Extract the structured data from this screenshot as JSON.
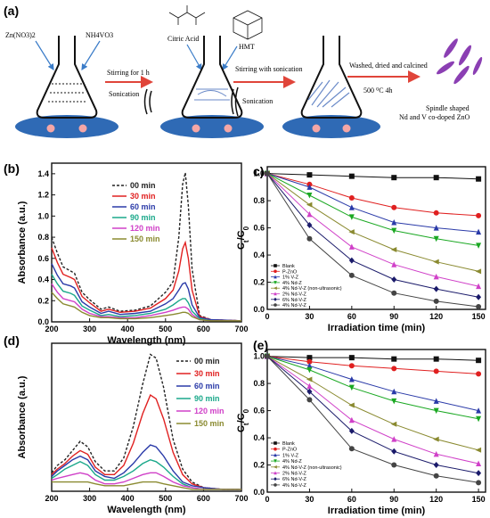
{
  "panel_labels": {
    "a": "(a)",
    "b": "(b)",
    "c": "c)",
    "d": "(d)",
    "e": "(e)"
  },
  "scheme": {
    "reagent1": "Zn(NO3)2",
    "reagent2": "NH4VO3",
    "citric": "Citric Acid",
    "hmt": "HMT",
    "step1": "Stirring for 1 h",
    "step2": "Stirring with sonication",
    "step3": "Washed, dried and calcined",
    "temp": "500 ⁰C 4h",
    "sonication1": "Sonication",
    "sonication2": "Sonication",
    "product1": "Spindle shaped",
    "product2": "Nd and V co-doped ZnO",
    "colors": {
      "arrow": "#e0453a",
      "pad": "#2f6ab5",
      "dot": "#f4a6a6",
      "spindle": "#8b3fb3"
    }
  },
  "chart_data": [
    {
      "id": "b",
      "type": "line",
      "xlabel": "Wavelength (nm)",
      "ylabel": "Absorbance (a.u.)",
      "xlim": [
        200,
        700
      ],
      "ylim": [
        0.0,
        1.5
      ],
      "xticks": [
        200,
        300,
        400,
        500,
        600,
        700
      ],
      "yticks": [
        0.0,
        0.2,
        0.4,
        0.6,
        0.8,
        1.0,
        1.2,
        1.4
      ],
      "ytick_labels": [
        "0.0",
        "0.2",
        "0.4",
        "0.6",
        "0.8",
        "1.0",
        "1.2",
        "1.4"
      ],
      "legend": "top-left-inside",
      "series": [
        {
          "name": "00 min",
          "color": "#222222",
          "dash": "3,2",
          "x": [
            200,
            215,
            230,
            250,
            260,
            280,
            300,
            330,
            350,
            380,
            420,
            460,
            500,
            520,
            535,
            545,
            552,
            560,
            570,
            590,
            620,
            700
          ],
          "y": [
            0.8,
            0.65,
            0.52,
            0.48,
            0.46,
            0.28,
            0.21,
            0.12,
            0.14,
            0.1,
            0.11,
            0.15,
            0.28,
            0.38,
            0.8,
            1.3,
            1.41,
            1.1,
            0.5,
            0.06,
            0.02,
            0.01
          ]
        },
        {
          "name": "30 min",
          "color": "#e02020",
          "x": [
            200,
            215,
            230,
            250,
            260,
            280,
            300,
            330,
            350,
            380,
            420,
            460,
            500,
            520,
            535,
            545,
            552,
            560,
            570,
            590,
            620,
            700
          ],
          "y": [
            0.7,
            0.56,
            0.45,
            0.42,
            0.4,
            0.24,
            0.18,
            0.1,
            0.12,
            0.09,
            0.1,
            0.13,
            0.22,
            0.3,
            0.48,
            0.69,
            0.75,
            0.6,
            0.3,
            0.05,
            0.02,
            0.01
          ]
        },
        {
          "name": "60 min",
          "color": "#2a3aa8",
          "x": [
            200,
            215,
            230,
            250,
            260,
            280,
            300,
            330,
            350,
            380,
            420,
            460,
            500,
            520,
            535,
            545,
            552,
            560,
            570,
            590,
            620,
            700
          ],
          "y": [
            0.55,
            0.44,
            0.36,
            0.34,
            0.32,
            0.19,
            0.14,
            0.08,
            0.1,
            0.07,
            0.08,
            0.1,
            0.17,
            0.22,
            0.3,
            0.36,
            0.37,
            0.31,
            0.16,
            0.04,
            0.02,
            0.01
          ]
        },
        {
          "name": "90 min",
          "color": "#1aa88a",
          "x": [
            200,
            215,
            230,
            250,
            260,
            280,
            300,
            330,
            350,
            380,
            420,
            460,
            500,
            520,
            535,
            545,
            552,
            560,
            570,
            590,
            620,
            700
          ],
          "y": [
            0.45,
            0.36,
            0.29,
            0.27,
            0.25,
            0.15,
            0.11,
            0.06,
            0.07,
            0.05,
            0.06,
            0.08,
            0.12,
            0.16,
            0.2,
            0.22,
            0.22,
            0.18,
            0.1,
            0.03,
            0.01,
            0.01
          ]
        },
        {
          "name": "120 min",
          "color": "#d040c8",
          "x": [
            200,
            215,
            230,
            250,
            260,
            280,
            300,
            330,
            350,
            380,
            420,
            460,
            500,
            520,
            535,
            545,
            552,
            560,
            570,
            590,
            620,
            700
          ],
          "y": [
            0.36,
            0.28,
            0.22,
            0.2,
            0.19,
            0.12,
            0.08,
            0.05,
            0.05,
            0.04,
            0.04,
            0.06,
            0.09,
            0.11,
            0.13,
            0.14,
            0.14,
            0.12,
            0.07,
            0.02,
            0.01,
            0.01
          ]
        },
        {
          "name": "150 min",
          "color": "#8a8a30",
          "x": [
            200,
            215,
            230,
            250,
            260,
            280,
            300,
            330,
            350,
            380,
            420,
            460,
            500,
            520,
            535,
            545,
            552,
            560,
            570,
            590,
            620,
            700
          ],
          "y": [
            0.28,
            0.22,
            0.17,
            0.15,
            0.14,
            0.09,
            0.06,
            0.04,
            0.04,
            0.03,
            0.03,
            0.04,
            0.06,
            0.07,
            0.08,
            0.09,
            0.09,
            0.08,
            0.05,
            0.02,
            0.01,
            0.01
          ]
        }
      ]
    },
    {
      "id": "c",
      "type": "line",
      "xlabel": "Irradiation time (min)",
      "ylabel": "Ct/C0",
      "xlim": [
        0,
        155
      ],
      "ylim": [
        0.0,
        1.05
      ],
      "xticks": [
        0,
        30,
        60,
        90,
        120,
        150
      ],
      "yticks": [
        0.0,
        0.2,
        0.4,
        0.6,
        0.8,
        1.0
      ],
      "ytick_labels": [
        "0.0",
        "0.2",
        "0.4",
        "0.6",
        "0.8",
        "1.0"
      ],
      "legend": "bottom-left-inside",
      "x": [
        0,
        30,
        60,
        90,
        120,
        150
      ],
      "series": [
        {
          "name": "Blank",
          "color": "#111111",
          "marker": "square",
          "values": [
            1.0,
            0.99,
            0.98,
            0.97,
            0.97,
            0.96
          ]
        },
        {
          "name": "P-ZnO",
          "color": "#e02020",
          "marker": "circle",
          "values": [
            1.0,
            0.92,
            0.82,
            0.75,
            0.71,
            0.69
          ]
        },
        {
          "name": "1% V-Z",
          "color": "#2a3aa8",
          "marker": "triangle",
          "values": [
            1.0,
            0.9,
            0.75,
            0.64,
            0.6,
            0.57
          ]
        },
        {
          "name": "4% Nd-Z",
          "color": "#1aa822",
          "marker": "tri-down",
          "values": [
            1.0,
            0.84,
            0.68,
            0.58,
            0.52,
            0.47
          ]
        },
        {
          "name": "4% Nd-V-Z (non-ultrasonic)",
          "color": "#8a8a30",
          "marker": "triangle-left",
          "values": [
            1.0,
            0.77,
            0.57,
            0.44,
            0.35,
            0.28
          ]
        },
        {
          "name": "2% Nd-V-Z",
          "color": "#d040c8",
          "marker": "triangle",
          "values": [
            1.0,
            0.7,
            0.46,
            0.33,
            0.24,
            0.17
          ]
        },
        {
          "name": "6% Nd-V-Z",
          "color": "#1a1a6a",
          "marker": "diamond",
          "values": [
            1.0,
            0.62,
            0.36,
            0.22,
            0.15,
            0.09
          ]
        },
        {
          "name": "4% Nd-V-Z",
          "color": "#444444",
          "marker": "circle",
          "values": [
            1.0,
            0.52,
            0.25,
            0.12,
            0.06,
            0.02
          ]
        }
      ]
    },
    {
      "id": "d",
      "type": "line",
      "xlabel": "Wavelength (nm)",
      "ylabel": "Absorbance (a.u.)",
      "xlim": [
        200,
        700
      ],
      "ylim": [
        0.0,
        0.8
      ],
      "xticks": [
        200,
        300,
        400,
        500,
        600,
        700
      ],
      "yticks": [],
      "legend": "top-right-inside",
      "series": [
        {
          "name": "00 min",
          "color": "#222222",
          "dash": "3,2",
          "x": [
            200,
            215,
            235,
            255,
            275,
            295,
            315,
            340,
            365,
            390,
            415,
            440,
            460,
            475,
            495,
            520,
            545,
            570,
            600,
            650,
            700
          ],
          "y": [
            0.1,
            0.14,
            0.17,
            0.22,
            0.27,
            0.24,
            0.16,
            0.11,
            0.11,
            0.18,
            0.35,
            0.58,
            0.74,
            0.72,
            0.56,
            0.28,
            0.12,
            0.05,
            0.02,
            0.01,
            0.01
          ]
        },
        {
          "name": "30 min",
          "color": "#e02020",
          "x": [
            200,
            215,
            235,
            255,
            275,
            295,
            315,
            340,
            365,
            390,
            415,
            440,
            460,
            475,
            495,
            520,
            545,
            570,
            600,
            650,
            700
          ],
          "y": [
            0.09,
            0.12,
            0.15,
            0.19,
            0.22,
            0.2,
            0.13,
            0.09,
            0.09,
            0.14,
            0.26,
            0.42,
            0.52,
            0.5,
            0.39,
            0.21,
            0.09,
            0.04,
            0.02,
            0.01,
            0.01
          ]
        },
        {
          "name": "60 min",
          "color": "#2a3aa8",
          "x": [
            200,
            215,
            235,
            255,
            275,
            295,
            315,
            340,
            365,
            390,
            415,
            440,
            460,
            475,
            495,
            520,
            545,
            570,
            600,
            650,
            700
          ],
          "y": [
            0.08,
            0.11,
            0.14,
            0.17,
            0.19,
            0.17,
            0.11,
            0.08,
            0.07,
            0.1,
            0.15,
            0.21,
            0.25,
            0.24,
            0.19,
            0.11,
            0.05,
            0.03,
            0.02,
            0.01,
            0.01
          ]
        },
        {
          "name": "90 min",
          "color": "#1aa88a",
          "x": [
            200,
            215,
            235,
            255,
            275,
            295,
            315,
            340,
            365,
            390,
            415,
            440,
            460,
            475,
            495,
            520,
            545,
            570,
            600,
            650,
            700
          ],
          "y": [
            0.07,
            0.09,
            0.12,
            0.14,
            0.16,
            0.14,
            0.09,
            0.06,
            0.06,
            0.08,
            0.11,
            0.15,
            0.17,
            0.16,
            0.13,
            0.08,
            0.04,
            0.02,
            0.01,
            0.01,
            0.01
          ]
        },
        {
          "name": "120 min",
          "color": "#d040c8",
          "x": [
            200,
            215,
            235,
            255,
            275,
            295,
            315,
            340,
            365,
            390,
            415,
            440,
            460,
            475,
            495,
            520,
            545,
            570,
            600,
            650,
            700
          ],
          "y": [
            0.06,
            0.07,
            0.08,
            0.09,
            0.1,
            0.09,
            0.06,
            0.04,
            0.04,
            0.05,
            0.07,
            0.09,
            0.1,
            0.1,
            0.08,
            0.05,
            0.03,
            0.02,
            0.01,
            0.01,
            0.01
          ]
        },
        {
          "name": "150 min",
          "color": "#8a8a30",
          "x": [
            200,
            215,
            235,
            255,
            275,
            295,
            315,
            340,
            365,
            390,
            415,
            440,
            460,
            475,
            495,
            520,
            545,
            570,
            600,
            650,
            700
          ],
          "y": [
            0.05,
            0.05,
            0.05,
            0.05,
            0.05,
            0.05,
            0.04,
            0.03,
            0.03,
            0.03,
            0.04,
            0.05,
            0.05,
            0.05,
            0.04,
            0.03,
            0.02,
            0.01,
            0.01,
            0.01,
            0.01
          ]
        }
      ]
    },
    {
      "id": "e",
      "type": "line",
      "xlabel": "Irradiation time (min)",
      "ylabel": "Ct/C0",
      "xlim": [
        0,
        155
      ],
      "ylim": [
        0.0,
        1.05
      ],
      "xticks": [
        0,
        30,
        60,
        90,
        120,
        150
      ],
      "yticks": [
        0.0,
        0.2,
        0.4,
        0.6,
        0.8,
        1.0
      ],
      "ytick_labels": [
        "0.0",
        "0.2",
        "0.4",
        "0.6",
        "0.8",
        "1.0"
      ],
      "legend": "bottom-left-inside",
      "x": [
        0,
        30,
        60,
        90,
        120,
        150
      ],
      "series": [
        {
          "name": "Blank",
          "color": "#111111",
          "marker": "square",
          "values": [
            1.0,
            0.99,
            0.99,
            0.98,
            0.98,
            0.97
          ]
        },
        {
          "name": "P-ZnO",
          "color": "#e02020",
          "marker": "circle",
          "values": [
            1.0,
            0.96,
            0.93,
            0.91,
            0.89,
            0.87
          ]
        },
        {
          "name": "1% V-Z",
          "color": "#2a3aa8",
          "marker": "triangle",
          "values": [
            1.0,
            0.93,
            0.83,
            0.74,
            0.67,
            0.6
          ]
        },
        {
          "name": "4% Nd-Z",
          "color": "#1aa822",
          "marker": "tri-down",
          "values": [
            1.0,
            0.9,
            0.77,
            0.67,
            0.6,
            0.54
          ]
        },
        {
          "name": "4% Nd-V-Z (non-ultrasonic)",
          "color": "#8a8a30",
          "marker": "triangle-left",
          "values": [
            1.0,
            0.83,
            0.64,
            0.5,
            0.39,
            0.31
          ]
        },
        {
          "name": "2% Nd-V-Z",
          "color": "#d040c8",
          "marker": "triangle",
          "values": [
            1.0,
            0.78,
            0.53,
            0.39,
            0.28,
            0.21
          ]
        },
        {
          "name": "6% Nd-V-Z",
          "color": "#1a1a6a",
          "marker": "diamond",
          "values": [
            1.0,
            0.74,
            0.45,
            0.3,
            0.2,
            0.14
          ]
        },
        {
          "name": "4% Nd-V-Z",
          "color": "#444444",
          "marker": "circle",
          "values": [
            1.0,
            0.68,
            0.32,
            0.2,
            0.12,
            0.07
          ]
        }
      ]
    }
  ]
}
